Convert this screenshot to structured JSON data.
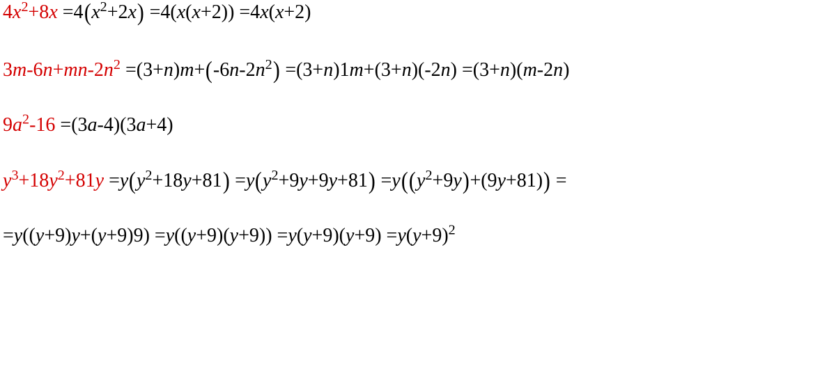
{
  "colors": {
    "highlight": "#d40000",
    "text": "#000000",
    "background": "#ffffff"
  },
  "typography": {
    "family": "Times New Roman",
    "size_pt": 28,
    "italic_variables": true,
    "superscript_scale": 0.72
  },
  "lines": [
    {
      "id": "eq1",
      "segments": [
        {
          "type": "expr",
          "color": "highlight",
          "parts": [
            "4",
            "x",
            "^2",
            "+8",
            "x"
          ]
        },
        {
          "type": "text",
          "color": "text",
          "value": " =4"
        },
        {
          "type": "bigopen"
        },
        {
          "type": "expr",
          "color": "text",
          "parts": [
            "x",
            "^2",
            "+2",
            "x"
          ]
        },
        {
          "type": "bigclose"
        },
        {
          "type": "text",
          "color": "text",
          "value": " =4("
        },
        {
          "type": "expr",
          "color": "text",
          "parts": [
            "x",
            "(",
            "x",
            "+2)"
          ]
        },
        {
          "type": "text",
          "color": "text",
          "value": ") =4"
        },
        {
          "type": "expr",
          "color": "text",
          "parts": [
            "x",
            "(",
            "x",
            "+2)"
          ]
        }
      ]
    },
    {
      "id": "eq2",
      "segments": [
        {
          "type": "expr",
          "color": "highlight",
          "parts": [
            "3",
            "m",
            "-6",
            "n",
            "+",
            "m",
            "n",
            "-2",
            "n",
            "^2"
          ]
        },
        {
          "type": "text",
          "color": "text",
          "value": " =(3+"
        },
        {
          "type": "var",
          "color": "text",
          "value": "n"
        },
        {
          "type": "text",
          "color": "text",
          "value": ")"
        },
        {
          "type": "var",
          "color": "text",
          "value": "m"
        },
        {
          "type": "text",
          "color": "text",
          "value": "+"
        },
        {
          "type": "bigopen"
        },
        {
          "type": "text",
          "color": "text",
          "value": "-6"
        },
        {
          "type": "var",
          "color": "text",
          "value": "n"
        },
        {
          "type": "text",
          "color": "text",
          "value": "-2"
        },
        {
          "type": "var",
          "color": "text",
          "value": "n"
        },
        {
          "type": "sup",
          "color": "text",
          "value": "2"
        },
        {
          "type": "bigclose"
        },
        {
          "type": "text",
          "color": "text",
          "value": " =(3+"
        },
        {
          "type": "var",
          "color": "text",
          "value": "n"
        },
        {
          "type": "text",
          "color": "text",
          "value": ")1"
        },
        {
          "type": "var",
          "color": "text",
          "value": "m"
        },
        {
          "type": "text",
          "color": "text",
          "value": "+(3+"
        },
        {
          "type": "var",
          "color": "text",
          "value": "n"
        },
        {
          "type": "text",
          "color": "text",
          "value": ")(-2"
        },
        {
          "type": "var",
          "color": "text",
          "value": "n"
        },
        {
          "type": "text",
          "color": "text",
          "value": ") =(3+"
        },
        {
          "type": "var",
          "color": "text",
          "value": "n"
        },
        {
          "type": "text",
          "color": "text",
          "value": ")("
        },
        {
          "type": "var",
          "color": "text",
          "value": "m"
        },
        {
          "type": "text",
          "color": "text",
          "value": "-2"
        },
        {
          "type": "var",
          "color": "text",
          "value": "n"
        },
        {
          "type": "text",
          "color": "text",
          "value": ")"
        }
      ]
    },
    {
      "id": "eq3",
      "segments": [
        {
          "type": "expr",
          "color": "highlight",
          "parts": [
            "9",
            "a",
            "^2",
            "-16"
          ]
        },
        {
          "type": "text",
          "color": "text",
          "value": " =(3"
        },
        {
          "type": "var",
          "color": "text",
          "value": "a"
        },
        {
          "type": "text",
          "color": "text",
          "value": "-4)(3"
        },
        {
          "type": "var",
          "color": "text",
          "value": "a"
        },
        {
          "type": "text",
          "color": "text",
          "value": "+4)"
        }
      ]
    },
    {
      "id": "eq4a",
      "segments": [
        {
          "type": "expr",
          "color": "highlight",
          "parts": [
            "y",
            "^3",
            "+18",
            "y",
            "^2",
            "+81",
            "y"
          ]
        },
        {
          "type": "text",
          "color": "text",
          "value": " ="
        },
        {
          "type": "var",
          "color": "text",
          "value": "y"
        },
        {
          "type": "bigopen"
        },
        {
          "type": "var",
          "color": "text",
          "value": "y"
        },
        {
          "type": "sup",
          "color": "text",
          "value": "2"
        },
        {
          "type": "text",
          "color": "text",
          "value": "+18"
        },
        {
          "type": "var",
          "color": "text",
          "value": "y"
        },
        {
          "type": "text",
          "color": "text",
          "value": "+81"
        },
        {
          "type": "bigclose"
        },
        {
          "type": "text",
          "color": "text",
          "value": " ="
        },
        {
          "type": "var",
          "color": "text",
          "value": "y"
        },
        {
          "type": "bigopen"
        },
        {
          "type": "var",
          "color": "text",
          "value": "y"
        },
        {
          "type": "sup",
          "color": "text",
          "value": "2"
        },
        {
          "type": "text",
          "color": "text",
          "value": "+9"
        },
        {
          "type": "var",
          "color": "text",
          "value": "y"
        },
        {
          "type": "text",
          "color": "text",
          "value": "+9"
        },
        {
          "type": "var",
          "color": "text",
          "value": "y"
        },
        {
          "type": "text",
          "color": "text",
          "value": "+81"
        },
        {
          "type": "bigclose"
        },
        {
          "type": "text",
          "color": "text",
          "value": " ="
        },
        {
          "type": "var",
          "color": "text",
          "value": "y"
        },
        {
          "type": "bigopen"
        },
        {
          "type": "bigopen"
        },
        {
          "type": "var",
          "color": "text",
          "value": "y"
        },
        {
          "type": "sup",
          "color": "text",
          "value": "2"
        },
        {
          "type": "text",
          "color": "text",
          "value": "+9"
        },
        {
          "type": "var",
          "color": "text",
          "value": "y"
        },
        {
          "type": "bigclose"
        },
        {
          "type": "text",
          "color": "text",
          "value": "+(9"
        },
        {
          "type": "var",
          "color": "text",
          "value": "y"
        },
        {
          "type": "text",
          "color": "text",
          "value": "+81)"
        },
        {
          "type": "bigclose"
        },
        {
          "type": "text",
          "color": "text",
          "value": " ="
        }
      ]
    },
    {
      "id": "eq4b",
      "segments": [
        {
          "type": "text",
          "color": "text",
          "value": "="
        },
        {
          "type": "var",
          "color": "text",
          "value": "y"
        },
        {
          "type": "text",
          "color": "text",
          "value": "(("
        },
        {
          "type": "var",
          "color": "text",
          "value": "y"
        },
        {
          "type": "text",
          "color": "text",
          "value": "+9)"
        },
        {
          "type": "var",
          "color": "text",
          "value": "y"
        },
        {
          "type": "text",
          "color": "text",
          "value": "+("
        },
        {
          "type": "var",
          "color": "text",
          "value": "y"
        },
        {
          "type": "text",
          "color": "text",
          "value": "+9)9) ="
        },
        {
          "type": "var",
          "color": "text",
          "value": "y"
        },
        {
          "type": "text",
          "color": "text",
          "value": "(("
        },
        {
          "type": "var",
          "color": "text",
          "value": "y"
        },
        {
          "type": "text",
          "color": "text",
          "value": "+9)("
        },
        {
          "type": "var",
          "color": "text",
          "value": "y"
        },
        {
          "type": "text",
          "color": "text",
          "value": "+9)) ="
        },
        {
          "type": "var",
          "color": "text",
          "value": "y"
        },
        {
          "type": "text",
          "color": "text",
          "value": "("
        },
        {
          "type": "var",
          "color": "text",
          "value": "y"
        },
        {
          "type": "text",
          "color": "text",
          "value": "+9)("
        },
        {
          "type": "var",
          "color": "text",
          "value": "y"
        },
        {
          "type": "text",
          "color": "text",
          "value": "+9) ="
        },
        {
          "type": "var",
          "color": "text",
          "value": "y"
        },
        {
          "type": "text",
          "color": "text",
          "value": "("
        },
        {
          "type": "var",
          "color": "text",
          "value": "y"
        },
        {
          "type": "text",
          "color": "text",
          "value": "+9)"
        },
        {
          "type": "sup",
          "color": "text",
          "value": "2"
        }
      ]
    }
  ]
}
